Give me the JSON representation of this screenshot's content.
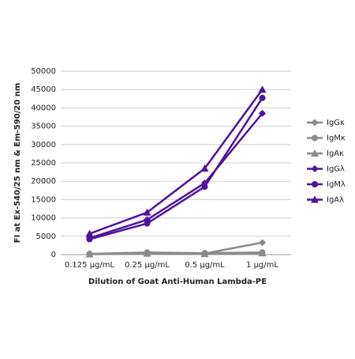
{
  "chart_data": {
    "type": "line",
    "x_label": "Dilution of Goat Anti-Human Lambda-PE",
    "y_label": "FI at Ex-540/25 nm & Em-590/20 nm",
    "categories": [
      "0.125 µg/mL",
      "0.25 µg/mL",
      "0.5 µg/mL",
      "1 µg/mL"
    ],
    "series": [
      {
        "name": "IgGκ",
        "color": "#8a8a8a",
        "marker": "diamond",
        "values": [
          200,
          400,
          300,
          3300
        ]
      },
      {
        "name": "IgMκ",
        "color": "#8a8a8a",
        "marker": "circle",
        "values": [
          200,
          600,
          400,
          600
        ]
      },
      {
        "name": "IgAκ",
        "color": "#8a8a8a",
        "marker": "triangle",
        "values": [
          100,
          300,
          200,
          400
        ]
      },
      {
        "name": "IgGλ",
        "color": "#4f129e",
        "marker": "diamond",
        "values": [
          4500,
          9500,
          19500,
          38500
        ]
      },
      {
        "name": "IgMλ",
        "color": "#4f129e",
        "marker": "circle",
        "values": [
          4200,
          8500,
          18500,
          42700
        ]
      },
      {
        "name": "IgAλ",
        "color": "#4f129e",
        "marker": "triangle",
        "values": [
          5700,
          11500,
          23500,
          45000
        ]
      }
    ],
    "ylim": [
      0,
      50000
    ],
    "yticks": [
      0,
      5000,
      10000,
      15000,
      20000,
      25000,
      30000,
      35000,
      40000,
      45000,
      50000
    ],
    "grid": true,
    "legend": "right"
  }
}
